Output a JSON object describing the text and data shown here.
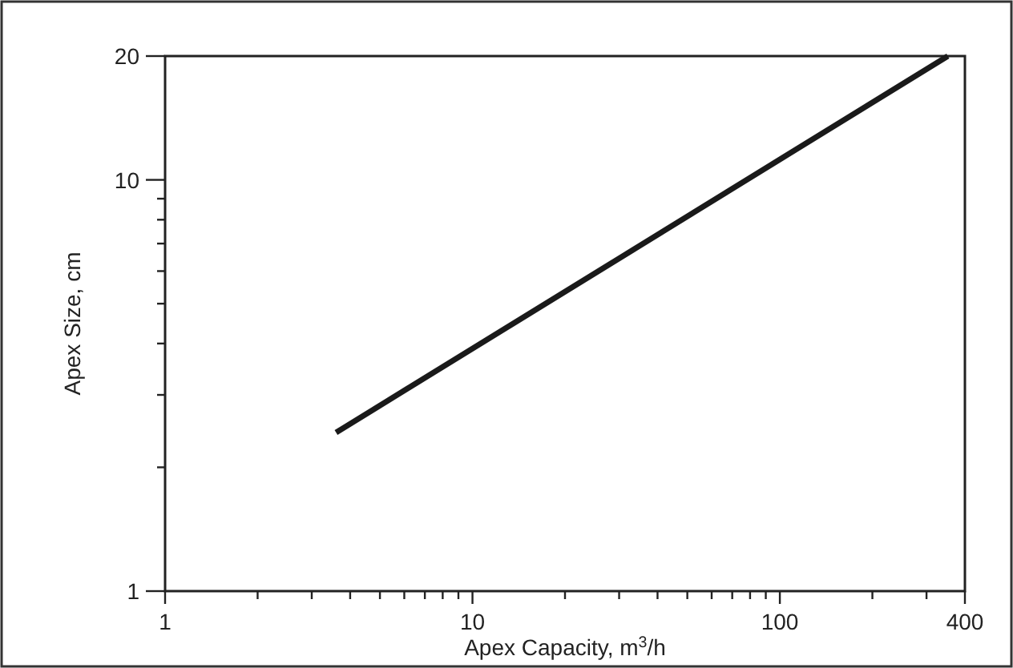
{
  "chart_data": {
    "type": "line",
    "xlabel": "Apex Capacity, m$^{3}$/h",
    "ylabel": "Apex Size, cm",
    "log": "xy",
    "xlim": [
      1,
      400
    ],
    "ylim": [
      1,
      20
    ],
    "xticks": [
      1,
      {
        "value": 2,
        "label": null
      },
      {
        "value": 3,
        "label": null
      },
      {
        "value": 4,
        "label": null
      },
      {
        "value": 5,
        "label": null
      },
      {
        "value": 6,
        "label": null
      },
      {
        "value": 7,
        "label": null
      },
      {
        "value": 8,
        "label": null
      },
      {
        "value": 9,
        "label": null
      },
      10,
      {
        "value": 20,
        "label": null
      },
      {
        "value": 30,
        "label": null
      },
      {
        "value": 40,
        "label": null
      },
      {
        "value": 50,
        "label": null
      },
      {
        "value": 60,
        "label": null
      },
      {
        "value": 70,
        "label": null
      },
      {
        "value": 80,
        "label": null
      },
      {
        "value": 90,
        "label": null
      },
      100,
      {
        "value": 200,
        "label": null
      },
      {
        "value": 300,
        "label": null
      },
      400
    ],
    "yticks": [
      1,
      {
        "value": 2,
        "label": null
      },
      {
        "value": 3,
        "label": null
      },
      {
        "value": 4,
        "label": null
      },
      {
        "value": 5,
        "label": null
      },
      {
        "value": 6,
        "label": null
      },
      {
        "value": 7,
        "label": null
      },
      {
        "value": 8,
        "label": null
      },
      {
        "value": 9,
        "label": null
      },
      10,
      20
    ],
    "grid": false,
    "marker": "none",
    "line_style": "solid",
    "series": [
      {
        "color": "#1a1a1a",
        "x": [
          3.6,
          352
        ],
        "values": [
          2.43,
          20
        ]
      }
    ]
  }
}
